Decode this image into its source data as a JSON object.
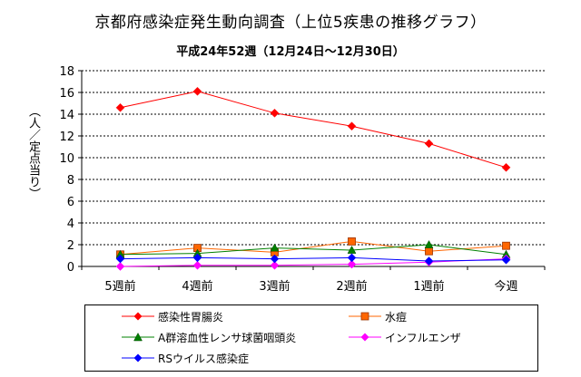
{
  "chart_data": {
    "type": "line",
    "title": "京都府感染症発生動向調査（上位5疾患の推移グラフ）",
    "subtitle": "平成24年52週（12月24日～12月30日）",
    "ylabel": "（人／定点当り）",
    "xlabel": "",
    "categories": [
      "5週前",
      "4週前",
      "3週前",
      "2週前",
      "1週前",
      "今週"
    ],
    "ylim": [
      0,
      18
    ],
    "yticks": [
      0,
      2,
      4,
      6,
      8,
      10,
      12,
      14,
      16,
      18
    ],
    "grid": true,
    "legend_position": "bottom",
    "series": [
      {
        "name": "感染性胃腸炎",
        "values": [
          14.6,
          16.1,
          14.1,
          12.9,
          11.3,
          9.1
        ],
        "color": "#FF0000",
        "marker": "diamond"
      },
      {
        "name": "水痘",
        "values": [
          1.1,
          1.7,
          1.3,
          2.3,
          1.4,
          1.9
        ],
        "color": "#FF6600",
        "marker": "square"
      },
      {
        "name": "A群溶血性レンサ球菌咽頭炎",
        "values": [
          1.1,
          1.2,
          1.7,
          1.5,
          2.0,
          1.1
        ],
        "color": "#008000",
        "marker": "triangle"
      },
      {
        "name": "インフルエンザ",
        "values": [
          0.0,
          0.1,
          0.1,
          0.2,
          0.4,
          0.7
        ],
        "color": "#FF00FF",
        "marker": "diamond"
      },
      {
        "name": "RSウイルス感染症",
        "values": [
          0.7,
          0.8,
          0.7,
          0.8,
          0.5,
          0.6
        ],
        "color": "#0000FF",
        "marker": "diamond"
      }
    ]
  }
}
